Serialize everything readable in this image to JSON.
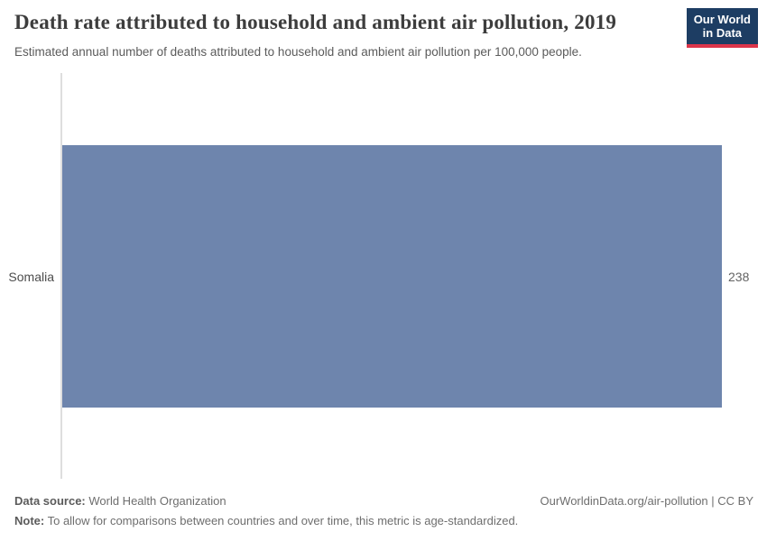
{
  "header": {
    "title": "Death rate attributed to household and ambient air pollution, 2019",
    "subtitle": "Estimated annual number of deaths attributed to household and ambient air pollution per 100,000 people.",
    "logo_line1": "Our World",
    "logo_line2": "in Data"
  },
  "chart_data": {
    "type": "bar",
    "orientation": "horizontal",
    "categories": [
      "Somalia"
    ],
    "values": [
      238
    ],
    "value_labels": [
      "238"
    ],
    "title": "Death rate attributed to household and ambient air pollution, 2019",
    "xlabel": "",
    "ylabel": "",
    "xlim": [
      0,
      238
    ],
    "grid": false,
    "legend": false,
    "bar_color": "#6e85ad"
  },
  "labels": {
    "category": "Somalia",
    "value": "238"
  },
  "footer": {
    "datasource_label": "Data source:",
    "datasource_value": " World Health Organization",
    "note_label": "Note:",
    "note_value": " To allow for comparisons between countries and over time, this metric is age-standardized.",
    "link": "OurWorldinData.org/air-pollution | CC BY"
  },
  "colors": {
    "bar": "#6e85ad",
    "logo_bg": "#1d3d63",
    "logo_accent": "#dc354a",
    "axis_line": "#dedede"
  }
}
